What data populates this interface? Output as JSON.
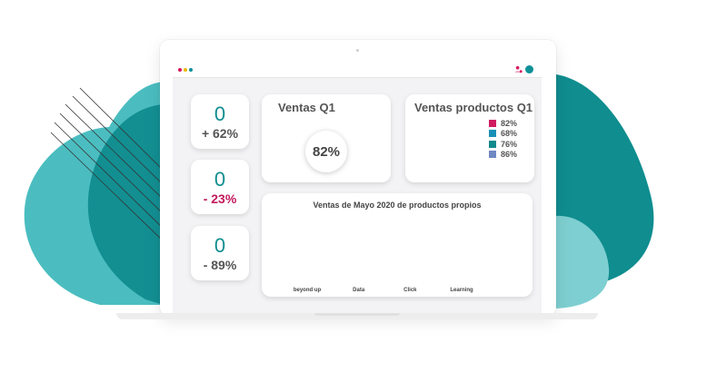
{
  "colors": {
    "teal_dark": "#0f8d8f",
    "teal_light": "#4bbdc0",
    "teal_pale": "#7ecfd1",
    "accent_pink": "#c2185b"
  },
  "topbar": {
    "icon": "user-notification-icon",
    "avatar": "avatar-icon"
  },
  "stats": [
    {
      "value": "0",
      "change": "+ 62%",
      "trend": "positive"
    },
    {
      "value": "0",
      "change": "- 23%",
      "trend": "negative"
    },
    {
      "value": "0",
      "change": "- 89%",
      "trend": "negative"
    }
  ],
  "ventas_q1": {
    "title": "Ventas Q1",
    "gauge_value": "82%"
  },
  "ventas_productos": {
    "title": "Ventas productos Q1",
    "legend": [
      {
        "label": "82%",
        "color": "#d01b5f"
      },
      {
        "label": "68%",
        "color": "#1a8fb5"
      },
      {
        "label": "76%",
        "color": "#10898d"
      },
      {
        "label": "86%",
        "color": "#6f88c4"
      }
    ]
  },
  "chart_data": {
    "type": "bar",
    "title": "Ventas de Mayo 2020 de productos propios",
    "categories": [
      "beyond up",
      "Data",
      "Click",
      "Learning"
    ],
    "values": [
      0,
      0,
      0,
      0
    ]
  }
}
